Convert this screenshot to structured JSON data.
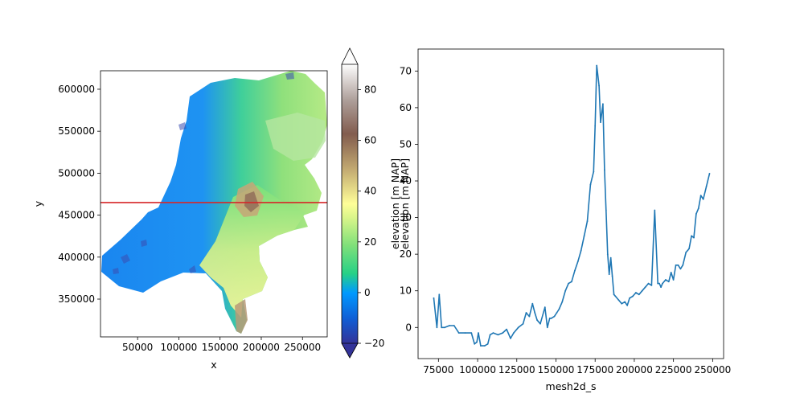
{
  "chart_data": [
    {
      "type": "heatmap",
      "subtype": "unstructured-mesh-map",
      "xlabel": "x",
      "ylabel": "y",
      "xlim": [
        5000,
        280000
      ],
      "ylim": [
        305000,
        622000
      ],
      "xticks": [
        50000,
        100000,
        150000,
        200000,
        250000
      ],
      "xtick_labels": [
        "50000",
        "100000",
        "150000",
        "200000",
        "250000"
      ],
      "yticks": [
        350000,
        400000,
        450000,
        500000,
        550000,
        600000
      ],
      "ytick_labels": [
        "350000",
        "400000",
        "450000",
        "500000",
        "550000",
        "600000"
      ],
      "cross_section_line": {
        "y": 465000,
        "color": "#d62728"
      },
      "colorbar": {
        "label": "elevation [m NAP]",
        "colormap": "terrain",
        "vmin": -20,
        "vmax": 90,
        "ticks": [
          -20,
          0,
          20,
          40,
          60,
          80
        ],
        "tick_labels": [
          "−20",
          "0",
          "20",
          "40",
          "60",
          "80"
        ],
        "extend": "both"
      }
    },
    {
      "type": "line",
      "xlabel": "mesh2d_s",
      "ylabel": "elevation [m NAP]",
      "xlim": [
        62000,
        257000
      ],
      "ylim": [
        -8.5,
        76
      ],
      "xticks": [
        75000,
        100000,
        125000,
        150000,
        175000,
        200000,
        225000,
        250000
      ],
      "xtick_labels": [
        "75000",
        "100000",
        "125000",
        "150000",
        "175000",
        "200000",
        "225000",
        "250000"
      ],
      "yticks": [
        0,
        10,
        20,
        30,
        40,
        50,
        60,
        70
      ],
      "ytick_labels": [
        "0",
        "10",
        "20",
        "30",
        "40",
        "50",
        "60",
        "70"
      ],
      "series": [
        {
          "color": "#1f77b4",
          "x": [
            72000,
            74000,
            75500,
            77000,
            79000,
            82000,
            85000,
            88000,
            92000,
            96000,
            98000,
            99500,
            100500,
            102000,
            104500,
            106500,
            108000,
            110000,
            113000,
            116000,
            118500,
            121000,
            123000,
            126000,
            129000,
            131000,
            133000,
            135000,
            136500,
            138000,
            140000,
            143000,
            144500,
            146000,
            147000,
            149000,
            150500,
            152000,
            154000,
            156000,
            158000,
            160000,
            162000,
            164000,
            166000,
            168000,
            170000,
            172000,
            174000,
            175000,
            176000,
            177500,
            178500,
            180000,
            181000,
            182000,
            183000,
            184000,
            185000,
            186000,
            187000,
            188000,
            190000,
            192000,
            194000,
            195500,
            197000,
            199000,
            201000,
            203000,
            205000,
            207000,
            209000,
            211000,
            213000,
            215000,
            216000,
            217000,
            218000,
            220000,
            222000,
            223500,
            225000,
            226500,
            228000,
            229500,
            231000,
            233000,
            234000,
            235000,
            236500,
            238000,
            239500,
            241000,
            242500,
            244000,
            246000,
            248000
          ],
          "y": [
            8,
            0,
            9,
            0,
            0,
            0.5,
            0.5,
            -1.5,
            -1.5,
            -1.5,
            -4.5,
            -4,
            -1.5,
            -5,
            -5,
            -4.5,
            -2,
            -1.5,
            -2,
            -1.5,
            -0.5,
            -3,
            -1.5,
            0,
            1,
            4,
            3,
            6.5,
            4,
            2,
            1,
            5.5,
            0,
            2.5,
            2.5,
            3,
            4,
            5,
            7,
            10,
            12,
            12.5,
            15.5,
            18,
            21,
            25,
            29,
            39,
            42.5,
            55,
            71.5,
            66,
            56,
            61,
            43,
            32,
            20,
            14.5,
            19,
            14,
            9,
            8.5,
            7.5,
            6.5,
            7,
            6,
            8,
            8.5,
            9.5,
            9,
            10,
            11,
            12,
            11.5,
            32,
            12,
            12,
            11,
            12,
            13,
            12.5,
            15,
            13,
            17,
            17,
            16,
            17,
            20.5,
            21,
            21.5,
            25,
            24.5,
            31,
            32.5,
            36,
            35,
            38.5,
            42
          ]
        }
      ]
    }
  ]
}
